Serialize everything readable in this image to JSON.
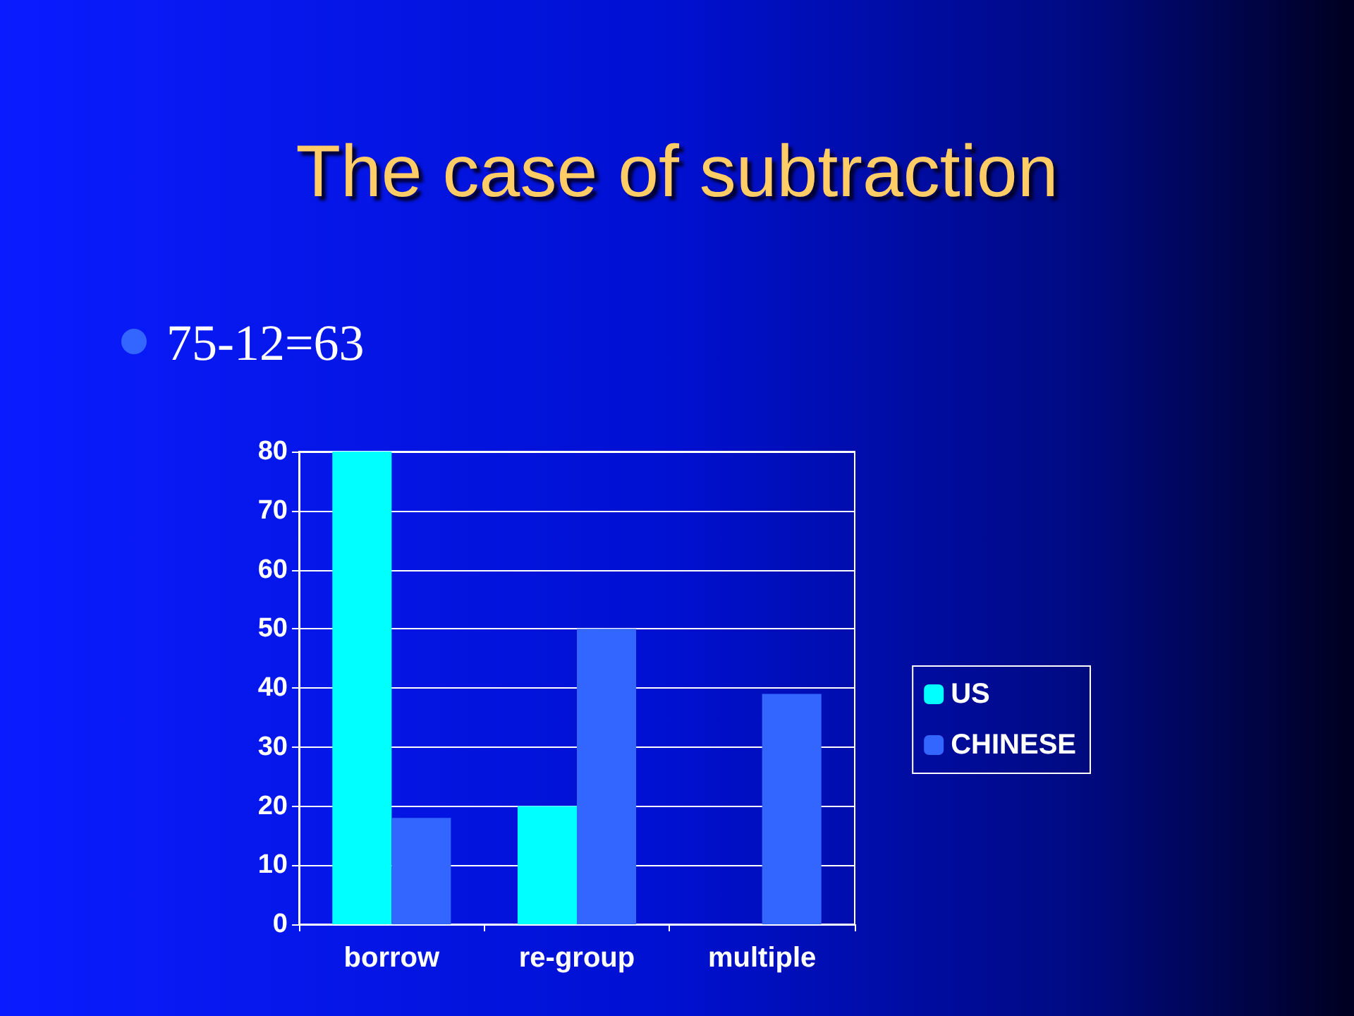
{
  "chart_data": {
    "type": "bar",
    "title": "The case of subtraction",
    "subtitle": "75-12=63",
    "categories": [
      "borrow",
      "re-group",
      "multiple"
    ],
    "series": [
      {
        "name": "US",
        "color": "#00ffff",
        "values": [
          80,
          20,
          0
        ]
      },
      {
        "name": "CHINESE",
        "color": "#3366ff",
        "values": [
          18,
          50,
          39
        ]
      }
    ],
    "ylim": [
      0,
      80
    ],
    "yticks": [
      0,
      10,
      20,
      30,
      40,
      50,
      60,
      70,
      80
    ],
    "grid": "y",
    "legend": "right"
  }
}
